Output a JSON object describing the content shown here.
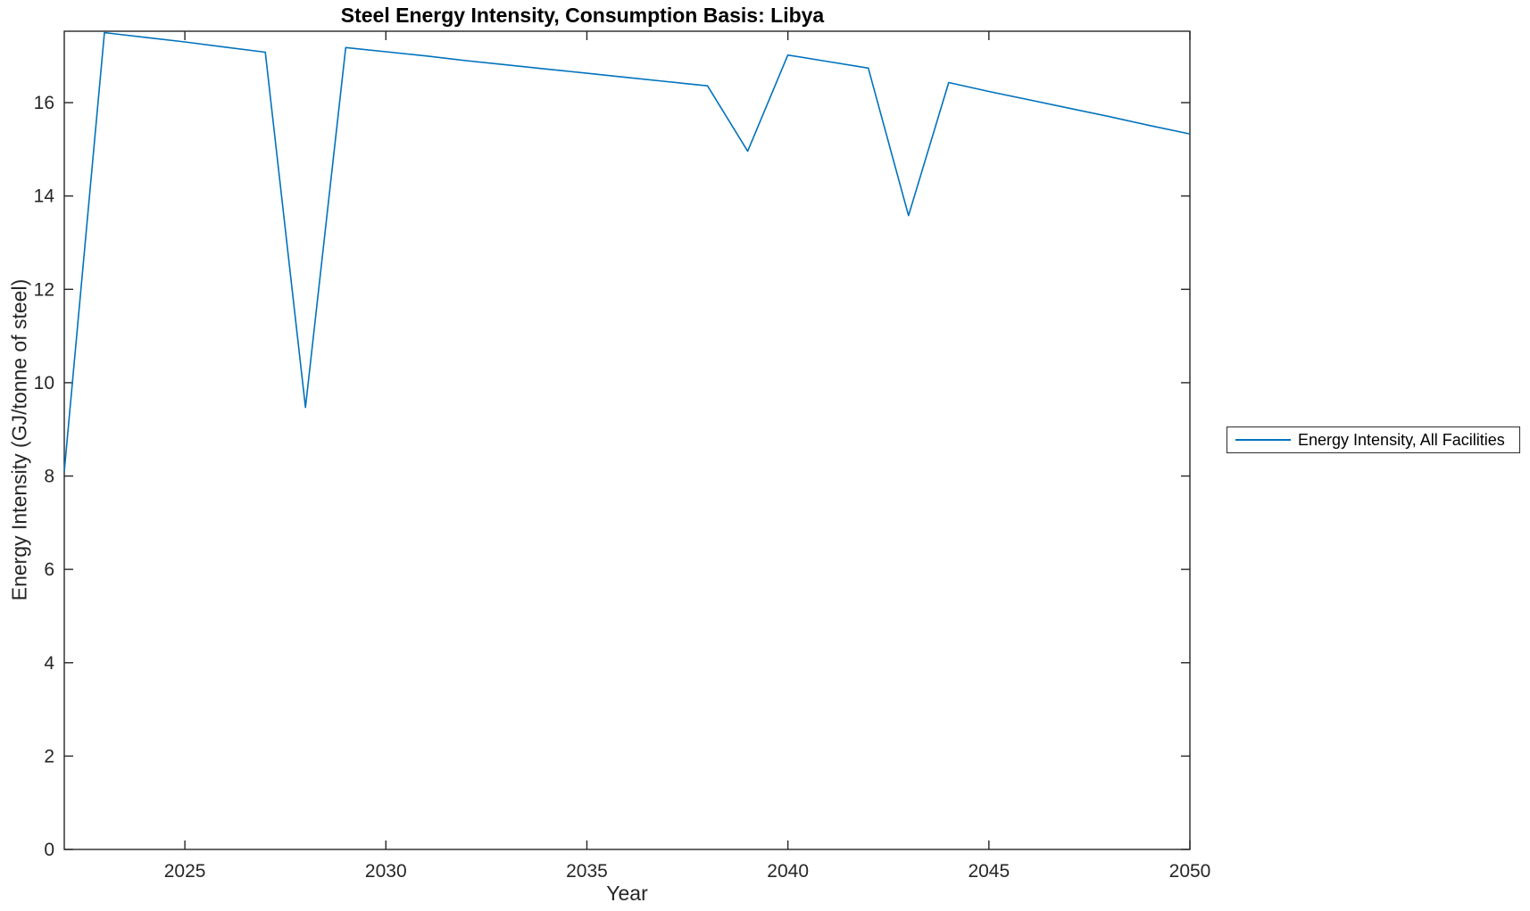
{
  "chart_data": {
    "type": "line",
    "title": "Steel Energy Intensity, Consumption Basis: Libya",
    "xlabel": "Year",
    "ylabel": "Energy Intensity (GJ/tonne of steel)",
    "xlim": [
      2022,
      2050
    ],
    "ylim": [
      0,
      17.53
    ],
    "xticks": [
      2025,
      2030,
      2035,
      2040,
      2045,
      2050
    ],
    "yticks": [
      0,
      2,
      4,
      6,
      8,
      10,
      12,
      14,
      16
    ],
    "grid": false,
    "box": true,
    "axis_color": "#262626",
    "legend_position": "right-outside",
    "x": [
      2022,
      2023,
      2024,
      2025,
      2026,
      2027,
      2028,
      2029,
      2030,
      2031,
      2032,
      2033,
      2034,
      2035,
      2036,
      2037,
      2038,
      2039,
      2040,
      2041,
      2042,
      2043,
      2044,
      2045,
      2046,
      2047,
      2048,
      2049,
      2050
    ],
    "series": [
      {
        "name": "Energy Intensity, All Facilities",
        "color": "#0072BD",
        "values": [
          8.1,
          17.5,
          17.4,
          17.3,
          17.19,
          17.08,
          9.47,
          17.18,
          17.09,
          17.0,
          16.9,
          16.81,
          16.72,
          16.63,
          16.54,
          16.45,
          16.36,
          14.96,
          17.02,
          16.88,
          16.74,
          13.58,
          16.43,
          16.24,
          16.06,
          15.88,
          15.7,
          15.51,
          15.33
        ]
      }
    ]
  }
}
